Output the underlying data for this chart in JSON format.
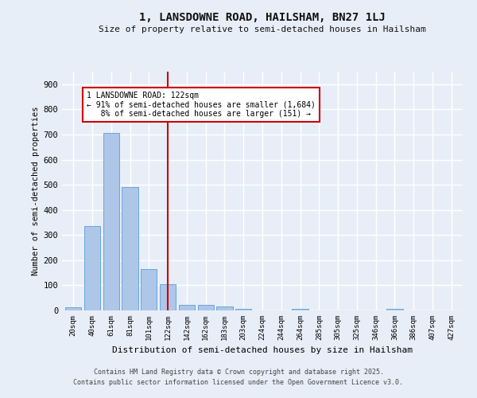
{
  "title": "1, LANSDOWNE ROAD, HAILSHAM, BN27 1LJ",
  "subtitle": "Size of property relative to semi-detached houses in Hailsham",
  "xlabel": "Distribution of semi-detached houses by size in Hailsham",
  "ylabel": "Number of semi-detached properties",
  "bar_color": "#aec6e8",
  "bar_edge_color": "#5a9fd4",
  "background_color": "#e8eef8",
  "grid_color": "#ffffff",
  "categories": [
    "20sqm",
    "40sqm",
    "61sqm",
    "81sqm",
    "101sqm",
    "122sqm",
    "142sqm",
    "162sqm",
    "183sqm",
    "203sqm",
    "224sqm",
    "244sqm",
    "264sqm",
    "285sqm",
    "305sqm",
    "325sqm",
    "346sqm",
    "366sqm",
    "386sqm",
    "407sqm",
    "427sqm"
  ],
  "values": [
    12,
    335,
    705,
    492,
    165,
    105,
    22,
    22,
    15,
    7,
    0,
    0,
    7,
    0,
    0,
    0,
    0,
    7,
    0,
    0,
    0
  ],
  "vline_x": 5,
  "vline_color": "#cc0000",
  "annotation_line1": "1 LANSDOWNE ROAD: 122sqm",
  "annotation_line2": "← 91% of semi-detached houses are smaller (1,684)",
  "annotation_line3": "   8% of semi-detached houses are larger (151) →",
  "annotation_box_color": "#ffffff",
  "annotation_edge_color": "#cc0000",
  "footer1": "Contains HM Land Registry data © Crown copyright and database right 2025.",
  "footer2": "Contains public sector information licensed under the Open Government Licence v3.0.",
  "ylim": [
    0,
    950
  ],
  "yticks": [
    0,
    100,
    200,
    300,
    400,
    500,
    600,
    700,
    800,
    900
  ]
}
